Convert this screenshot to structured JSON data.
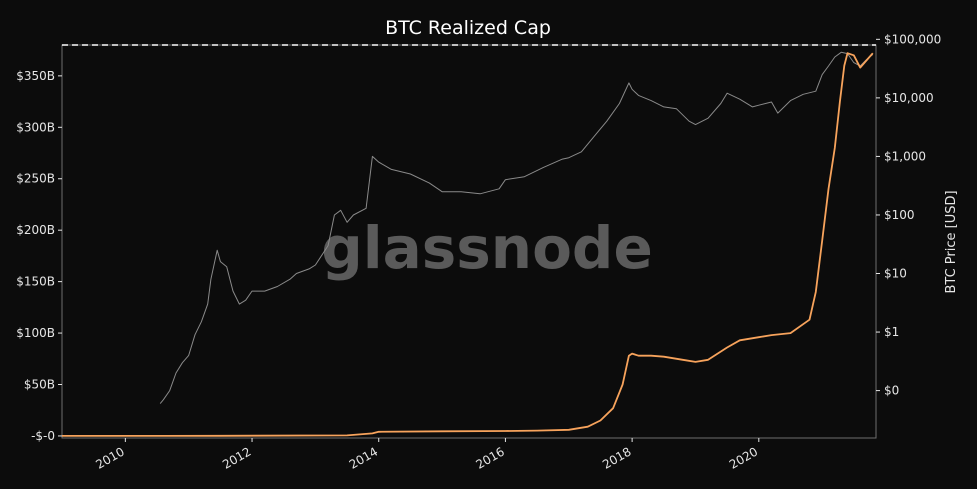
{
  "chart_data": {
    "type": "line",
    "title": "BTC Realized Cap",
    "watermark": "glassnode",
    "left_axis": {
      "ylabel": "",
      "range": [
        -2,
        380
      ],
      "ticks": [
        0,
        50,
        100,
        150,
        200,
        250,
        300,
        350
      ],
      "tick_labels": [
        "-$-0",
        "$50B",
        "$100B",
        "$150B",
        "$200B",
        "$250B",
        "$300B",
        "$350B"
      ]
    },
    "right_axis": {
      "ylabel": "BTC Price [USD]",
      "scale": "log",
      "range": [
        0.0155,
        80000
      ],
      "ticks": [
        0.1,
        1,
        10,
        100,
        1000,
        10000,
        100000
      ],
      "tick_labels": [
        "$0",
        "$1",
        "$10",
        "$100",
        "$1,000",
        "$10,000",
        "$100,000"
      ]
    },
    "x_axis": {
      "range": [
        2009.0,
        2021.85
      ],
      "ticks": [
        2010,
        2012,
        2014,
        2016,
        2018,
        2020
      ],
      "tick_labels": [
        "2010",
        "2012",
        "2014",
        "2016",
        "2018",
        "2020"
      ]
    },
    "reference_line": {
      "value": 380,
      "axis": "left",
      "style": "dashed",
      "color": "#ffffff"
    },
    "series": [
      {
        "axis": "left",
        "color": "#f7a35c",
        "x": [
          2009.0,
          2010.6,
          2011.5,
          2013.5,
          2013.9,
          2014.0,
          2015.0,
          2016.0,
          2016.5,
          2017.0,
          2017.3,
          2017.5,
          2017.7,
          2017.85,
          2017.95,
          2018.0,
          2018.1,
          2018.3,
          2018.5,
          2018.8,
          2019.0,
          2019.2,
          2019.5,
          2019.7,
          2020.0,
          2020.2,
          2020.5,
          2020.8,
          2020.9,
          2021.0,
          2021.1,
          2021.2,
          2021.28,
          2021.35,
          2021.4,
          2021.5,
          2021.6,
          2021.7,
          2021.8
        ],
        "values": [
          0,
          0.05,
          0.15,
          0.5,
          2.5,
          4,
          4.5,
          4.8,
          5.2,
          6,
          9,
          15,
          27,
          50,
          78,
          80,
          78,
          78,
          77,
          74,
          72,
          74,
          86,
          93,
          96,
          98,
          100,
          113,
          140,
          190,
          240,
          280,
          325,
          360,
          372,
          370,
          358,
          365,
          372
        ]
      },
      {
        "axis": "right",
        "color": "#8a8a8a",
        "x": [
          2010.55,
          2010.6,
          2010.7,
          2010.8,
          2010.9,
          2011.0,
          2011.1,
          2011.2,
          2011.3,
          2011.35,
          2011.45,
          2011.5,
          2011.6,
          2011.7,
          2011.8,
          2011.9,
          2012.0,
          2012.2,
          2012.4,
          2012.6,
          2012.7,
          2012.9,
          2013.0,
          2013.2,
          2013.3,
          2013.4,
          2013.5,
          2013.6,
          2013.8,
          2013.9,
          2014.0,
          2014.2,
          2014.5,
          2014.8,
          2015.0,
          2015.3,
          2015.6,
          2015.9,
          2016.0,
          2016.3,
          2016.6,
          2016.9,
          2017.0,
          2017.2,
          2017.4,
          2017.6,
          2017.8,
          2017.95,
          2018.0,
          2018.1,
          2018.3,
          2018.5,
          2018.7,
          2018.9,
          2019.0,
          2019.2,
          2019.4,
          2019.5,
          2019.7,
          2019.9,
          2020.0,
          2020.2,
          2020.3,
          2020.5,
          2020.7,
          2020.9,
          2021.0,
          2021.1,
          2021.2,
          2021.3,
          2021.4,
          2021.5,
          2021.6,
          2021.7,
          2021.8
        ],
        "values": [
          0.06,
          0.07,
          0.1,
          0.2,
          0.3,
          0.4,
          0.9,
          1.5,
          3,
          8,
          25,
          16,
          13,
          5,
          3,
          3.5,
          5,
          5,
          6,
          8,
          10,
          12,
          14,
          30,
          100,
          120,
          75,
          100,
          130,
          1000,
          800,
          600,
          500,
          350,
          250,
          250,
          230,
          280,
          400,
          450,
          650,
          900,
          950,
          1200,
          2200,
          4000,
          8000,
          18000,
          14000,
          11000,
          9000,
          7000,
          6500,
          4000,
          3500,
          4500,
          8000,
          12000,
          9500,
          7000,
          7500,
          8500,
          5500,
          9000,
          11500,
          13000,
          25000,
          35000,
          50000,
          60000,
          57000,
          40000,
          35000,
          45000,
          55000
        ]
      }
    ]
  }
}
